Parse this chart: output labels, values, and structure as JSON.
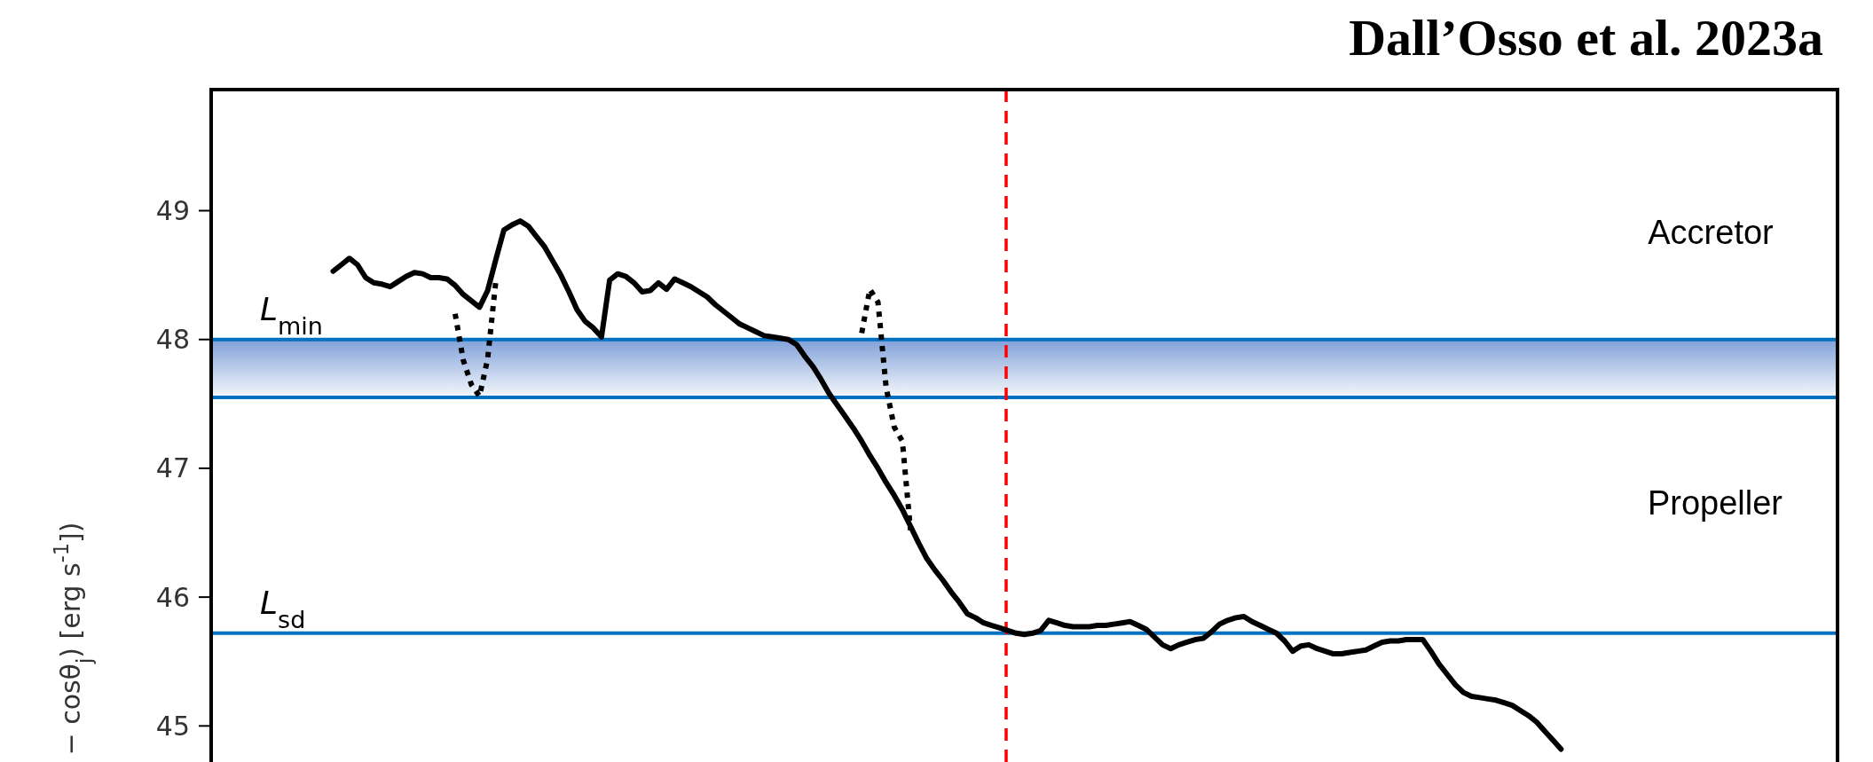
{
  "chart_data": {
    "type": "line",
    "title": "Dall’Osso et al. 2023a",
    "ylabel": "− cosθ$_{j}$) [erg s$^{-1}$])",
    "categories": [
      null,
      null,
      null,
      null,
      null,
      null,
      null,
      null,
      null,
      null,
      null,
      null,
      null,
      null,
      null,
      null,
      null,
      null,
      null,
      null,
      null,
      null,
      null,
      null,
      null,
      null,
      null,
      null,
      null,
      null,
      null,
      null,
      null,
      null,
      null,
      null,
      null,
      null,
      null,
      null,
      null,
      null,
      null,
      null,
      null,
      null,
      null,
      null,
      null,
      null,
      null,
      null,
      null,
      null,
      null,
      null,
      null,
      null,
      null,
      null,
      null,
      null,
      null,
      null,
      null,
      null,
      null,
      null,
      null,
      null,
      null,
      null,
      null,
      null,
      null,
      null,
      null,
      null,
      null,
      null,
      null,
      null,
      null,
      null,
      null,
      null,
      null,
      null,
      null,
      null,
      null,
      null,
      null,
      null,
      null,
      null,
      null,
      null,
      null,
      null,
      null,
      null,
      null,
      null,
      null,
      null,
      null,
      null,
      null,
      null,
      null,
      null,
      null,
      null,
      null,
      null,
      null,
      null,
      null,
      null,
      null,
      null,
      null,
      null,
      null,
      null,
      null,
      null,
      null,
      null,
      null,
      null,
      null,
      null,
      null,
      null,
      null,
      null,
      null,
      null,
      null,
      null,
      null,
      null,
      null,
      null,
      null,
      null,
      null,
      null,
      null,
      null,
      null,
      null,
      null,
      null,
      null,
      null,
      null,
      null,
      null,
      null,
      null,
      null,
      null,
      null,
      null,
      null,
      null,
      null,
      null,
      null,
      null,
      null,
      null,
      null,
      null,
      null,
      null,
      null,
      null,
      null,
      null,
      null,
      null,
      null,
      null,
      null,
      null,
      null,
      null,
      null,
      null,
      null,
      null,
      null,
      null,
      null,
      null,
      null,
      null
    ],
    "ylim": [
      44.72,
      49.94
    ],
    "yticks": [
      45,
      46,
      47,
      48,
      49
    ],
    "tick_labels": "y",
    "series": [
      {
        "color": "#000000",
        "line_style": "solid",
        "values": [
          null,
          null,
          null,
          null,
          null,
          null,
          null,
          null,
          null,
          null,
          null,
          null,
          null,
          null,
          null,
          48.53,
          48.58,
          48.63,
          48.58,
          48.48,
          48.44,
          48.43,
          48.41,
          48.45,
          48.49,
          48.52,
          48.51,
          48.48,
          48.48,
          48.47,
          48.42,
          48.35,
          48.3,
          48.25,
          48.38,
          48.62,
          48.85,
          48.89,
          48.92,
          48.88,
          48.8,
          48.72,
          48.61,
          48.5,
          48.37,
          48.23,
          48.14,
          48.09,
          48.02,
          48.46,
          48.51,
          48.49,
          48.44,
          48.37,
          48.38,
          48.44,
          48.39,
          48.47,
          48.44,
          48.41,
          48.37,
          48.33,
          48.27,
          48.22,
          48.17,
          48.12,
          48.09,
          48.06,
          48.03,
          48.02,
          48.01,
          48.0,
          47.96,
          47.87,
          47.79,
          47.69,
          47.58,
          47.49,
          47.4,
          47.31,
          47.21,
          47.1,
          47.0,
          46.89,
          46.79,
          46.68,
          46.55,
          46.42,
          46.3,
          46.21,
          46.13,
          46.04,
          45.96,
          45.87,
          45.84,
          45.8,
          45.78,
          45.76,
          45.74,
          45.72,
          45.71,
          45.72,
          45.74,
          45.82,
          45.8,
          45.78,
          45.77,
          45.77,
          45.77,
          45.78,
          45.78,
          45.79,
          45.8,
          45.81,
          45.78,
          45.75,
          45.69,
          45.63,
          45.6,
          45.63,
          45.65,
          45.67,
          45.68,
          45.73,
          45.79,
          45.82,
          45.84,
          45.85,
          45.81,
          45.78,
          45.75,
          45.72,
          45.66,
          45.58,
          45.62,
          45.63,
          45.6,
          45.58,
          45.56,
          45.56,
          45.57,
          45.58,
          45.59,
          45.62,
          45.65,
          45.66,
          45.66,
          45.67,
          45.67,
          45.67,
          45.58,
          45.48,
          45.4,
          45.32,
          45.26,
          45.23,
          45.22,
          45.21,
          45.2,
          45.18,
          45.16,
          45.12,
          45.08,
          45.03,
          44.96,
          44.89,
          44.82,
          null,
          null,
          null,
          null,
          null,
          null,
          null,
          null,
          null,
          null,
          null,
          null,
          null,
          null,
          null,
          null,
          null,
          null,
          null,
          null,
          null,
          null,
          null,
          null,
          null,
          null,
          null,
          null,
          null,
          null,
          null,
          null,
          null,
          null
        ]
      },
      {
        "color": "#000000",
        "line_style": "dotted",
        "values": [
          null,
          null,
          null,
          null,
          null,
          null,
          null,
          null,
          null,
          null,
          null,
          null,
          null,
          null,
          null,
          null,
          null,
          null,
          null,
          null,
          null,
          null,
          null,
          null,
          null,
          null,
          null,
          null,
          null,
          null,
          48.2,
          47.84,
          47.65,
          47.56,
          47.85,
          48.45,
          null,
          null,
          null,
          null,
          null,
          null,
          null,
          null,
          null,
          null,
          null,
          null,
          null,
          null,
          null,
          null,
          null,
          null,
          null,
          null,
          null,
          null,
          null,
          null,
          null,
          null,
          null,
          null,
          null,
          null,
          null,
          null,
          null,
          null,
          null,
          null,
          null,
          null,
          null,
          null,
          null,
          null,
          null,
          null,
          null,
          null,
          null,
          null,
          null,
          null,
          null,
          null,
          null,
          null,
          null,
          null,
          null,
          null,
          null,
          null,
          null,
          null,
          null,
          null,
          null,
          null,
          null,
          null,
          null,
          null,
          null,
          null,
          null,
          null,
          null,
          null,
          null,
          null,
          null,
          null,
          null,
          null,
          null,
          null,
          null,
          null,
          null,
          null,
          null,
          null,
          null,
          null,
          null,
          null,
          null,
          null,
          null,
          null,
          null,
          null,
          null,
          null,
          null,
          null,
          null,
          null,
          null,
          null,
          null,
          null,
          null,
          null,
          null,
          null,
          null,
          null,
          null,
          null,
          null,
          null,
          null,
          null,
          null,
          null,
          null,
          null,
          null,
          null,
          null,
          null,
          null,
          null,
          null,
          null,
          null,
          null,
          null,
          null,
          null,
          null,
          null,
          null,
          null,
          null,
          null,
          null,
          null,
          null,
          null,
          null,
          null,
          null,
          null,
          null,
          null,
          null,
          null,
          null,
          null,
          null,
          null,
          null,
          null,
          null,
          null
        ]
      },
      {
        "color": "#000000",
        "line_style": "dotted",
        "values": [
          null,
          null,
          null,
          null,
          null,
          null,
          null,
          null,
          null,
          null,
          null,
          null,
          null,
          null,
          null,
          null,
          null,
          null,
          null,
          null,
          null,
          null,
          null,
          null,
          null,
          null,
          null,
          null,
          null,
          null,
          null,
          null,
          null,
          null,
          null,
          null,
          null,
          null,
          null,
          null,
          null,
          null,
          null,
          null,
          null,
          null,
          null,
          null,
          null,
          null,
          null,
          null,
          null,
          null,
          null,
          null,
          null,
          null,
          null,
          null,
          null,
          null,
          null,
          null,
          null,
          null,
          null,
          null,
          null,
          null,
          null,
          null,
          null,
          null,
          null,
          null,
          null,
          null,
          null,
          null,
          48.05,
          48.39,
          48.29,
          47.63,
          47.32,
          47.21,
          46.52,
          null,
          null,
          null,
          null,
          null,
          null,
          null,
          null,
          null,
          null,
          null,
          null,
          null,
          null,
          null,
          null,
          null,
          null,
          null,
          null,
          null,
          null,
          null,
          null,
          null,
          null,
          null,
          null,
          null,
          null,
          null,
          null,
          null,
          null,
          null,
          null,
          null,
          null,
          null,
          null,
          null,
          null,
          null,
          null,
          null,
          null,
          null,
          null,
          null,
          null,
          null,
          null,
          null,
          null,
          null,
          null,
          null,
          null,
          null,
          null,
          null,
          null,
          null,
          null,
          null,
          null,
          null,
          null,
          null,
          null,
          null,
          null,
          null,
          null,
          null,
          null,
          null,
          null,
          null,
          null,
          null,
          null,
          null,
          null,
          null,
          null,
          null,
          null,
          null,
          null,
          null,
          null,
          null,
          null,
          null,
          null,
          null,
          null,
          null,
          null,
          null,
          null,
          null,
          null,
          null,
          null,
          null,
          null,
          null,
          null,
          null,
          null,
          null,
          null
        ]
      }
    ],
    "bands": [
      {
        "axis": "y",
        "from": 47.55,
        "to": 48.0,
        "color": "#4a78c8"
      }
    ],
    "ref_lines": [
      {
        "axis": "y",
        "value": 48.0,
        "label": "L$_{min}$",
        "color": "#0070c0",
        "line_style": "solid"
      },
      {
        "axis": "y",
        "value": 47.55,
        "color": "#0070c0",
        "line_style": "solid"
      },
      {
        "axis": "y",
        "value": 45.72,
        "label": "L$_{sd}$",
        "color": "#0070c0",
        "line_style": "solid"
      }
    ],
    "annotations": [
      "Accretor",
      "Propeller"
    ]
  }
}
